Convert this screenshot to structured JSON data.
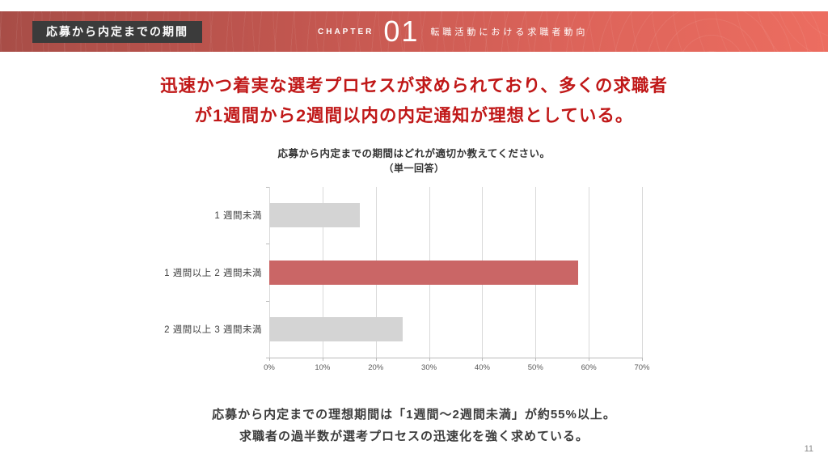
{
  "page": {
    "number": "11"
  },
  "header": {
    "badge": "応募から内定までの期間",
    "chapter_label": "CHAPTER",
    "chapter_number": "01",
    "chapter_title": "転職活動における求職者動向",
    "badge_bg": "#3b3b3b",
    "gradient_left": "#a84d47",
    "gradient_right": "#ec6d60"
  },
  "headline": {
    "line1": "迅速かつ着実な選考プロセスが求められており、多くの求職者",
    "line2": "が1週間から2週間以内の内定通知が理想としている。",
    "color": "#c01818"
  },
  "chart_data": {
    "type": "bar",
    "orientation": "horizontal",
    "title": "応募から内定までの期間はどれが適切か教えてください。",
    "subtitle": "（単一回答）",
    "categories": [
      "1 週間未満",
      "1 週間以上 2 週間未満",
      "2 週間以上 3 週間未満"
    ],
    "values": [
      17,
      58,
      25
    ],
    "unit": "%",
    "xlim": [
      0,
      70
    ],
    "x_ticks": [
      "0%",
      "10%",
      "20%",
      "30%",
      "40%",
      "50%",
      "60%",
      "70%"
    ],
    "grid": true,
    "legend": false,
    "bar_colors": [
      "#d4d4d4",
      "#ca6666",
      "#d4d4d4"
    ],
    "highlight_index": 1,
    "highlight_color": "#ca6666",
    "default_bar_color": "#d4d4d4"
  },
  "summary": {
    "line1": "応募から内定までの理想期間は「1週間〜2週間未満」が約55%以上。",
    "line2": "求職者の過半数が選考プロセスの迅速化を強く求めている。"
  }
}
